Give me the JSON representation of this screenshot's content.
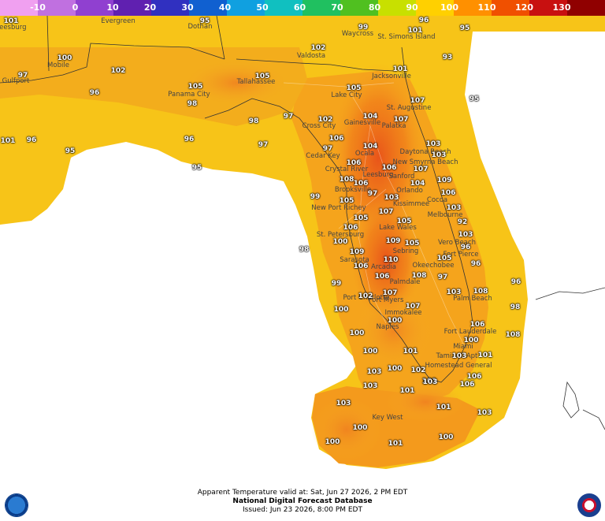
{
  "legend": {
    "ticks": [
      "-10",
      "0",
      "10",
      "20",
      "30",
      "40",
      "50",
      "60",
      "70",
      "80",
      "90",
      "100",
      "110",
      "120",
      "130"
    ],
    "colors": [
      "#f0a0f0",
      "#c070e0",
      "#9040d0",
      "#6020b0",
      "#3030c0",
      "#1060d0",
      "#10a0e0",
      "#10c0c0",
      "#20c060",
      "#50c020",
      "#c8e000",
      "#ffd000",
      "#ff9000",
      "#f05000",
      "#c81010",
      "#900000"
    ]
  },
  "cities": [
    "Leesburg",
    "Evergreen",
    "Dothan",
    "Waycross",
    "St. Simons Island",
    "Mobile",
    "Valdosta",
    "Gulfport",
    "Tallahassee",
    "Jacksonville",
    "Panama City",
    "Lake City",
    "St. Augustine",
    "Cross City",
    "Gainesville",
    "Palatka",
    "Ocala",
    "Daytona Beach",
    "Cedar Key",
    "New Smyrna Beach",
    "Crystal River",
    "Sanford",
    "Leesburg",
    "Brooksville",
    "Orlando",
    "Kissimmee",
    "Cocoa",
    "New Port Richey",
    "Melbourne",
    "Lake Wales",
    "St. Petersburg",
    "Vero Beach",
    "Sebring",
    "Fort Pierce",
    "Sarasota",
    "Arcadia",
    "Okeechobee",
    "Palmdale",
    "Port Charlotte",
    "Fort Myers",
    "Palm Beach",
    "Immokalee",
    "Naples",
    "Fort Lauderdale",
    "Miami",
    "Tamiami Apt",
    "Homestead General",
    "Key West"
  ],
  "values": [
    "101",
    "95",
    "96",
    "99",
    "101",
    "95",
    "102",
    "100",
    "102",
    "105",
    "101",
    "97",
    "105",
    "93",
    "98",
    "105",
    "107",
    "96",
    "98",
    "97",
    "102",
    "104",
    "107",
    "95",
    "101",
    "96",
    "106",
    "104",
    "103",
    "97",
    "96",
    "103",
    "97",
    "106",
    "106",
    "107",
    "109",
    "95",
    "108",
    "106",
    "104",
    "106",
    "103",
    "99",
    "97",
    "103",
    "92",
    "105",
    "107",
    "95",
    "106",
    "105",
    "105",
    "109",
    "103",
    "98",
    "100",
    "109",
    "105",
    "96",
    "110",
    "96",
    "106",
    "106",
    "105",
    "97",
    "108",
    "99",
    "102",
    "107",
    "103",
    "96",
    "100",
    "107",
    "98",
    "108",
    "106",
    "100",
    "100",
    "108",
    "100",
    "101",
    "100",
    "103",
    "101",
    "102",
    "103",
    "100",
    "101",
    "106",
    "103",
    "101",
    "103",
    "106",
    "103",
    "101",
    "103",
    "100",
    "100",
    "101",
    "100"
  ],
  "footer": {
    "line1": "Apparent Temperature valid at: Sat, Jun 27 2026, 2 PM EDT",
    "line2": "National Digital Forecast Database",
    "line3": "Issued: Jun 23 2026, 8:00 PM EDT"
  }
}
